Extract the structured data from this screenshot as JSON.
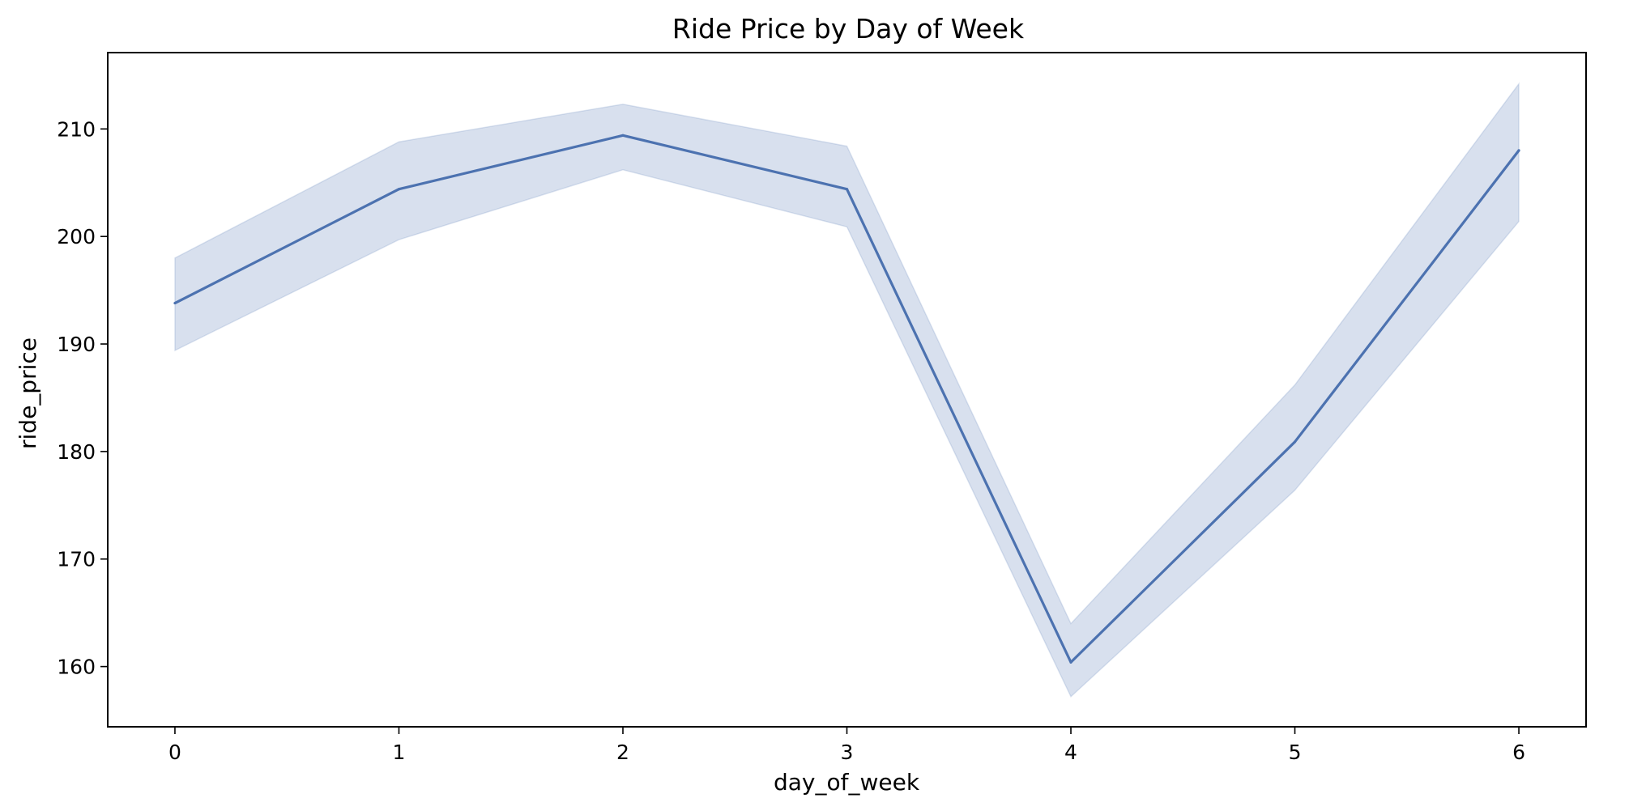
{
  "chart_data": {
    "type": "line",
    "title": "Ride Price by Day of Week",
    "xlabel": "day_of_week",
    "ylabel": "ride_price",
    "x": [
      0,
      1,
      2,
      3,
      4,
      5,
      6
    ],
    "series": [
      {
        "values": [
          193.8,
          204.4,
          209.4,
          204.4,
          160.4,
          180.9,
          208.0
        ],
        "ci_lower": [
          189.4,
          199.7,
          206.2,
          200.9,
          157.2,
          176.4,
          201.4
        ],
        "ci_upper": [
          198.0,
          208.8,
          212.3,
          208.4,
          164.0,
          186.2,
          214.2
        ],
        "color": "#4c72b0"
      }
    ],
    "xlim": [
      -0.3,
      6.3
    ],
    "ylim": [
      154.4,
      217.1
    ],
    "x_ticks": [
      0,
      1,
      2,
      3,
      4,
      5,
      6
    ],
    "y_ticks": [
      160,
      170,
      180,
      190,
      200,
      210
    ],
    "grid": false,
    "legend": "none"
  }
}
